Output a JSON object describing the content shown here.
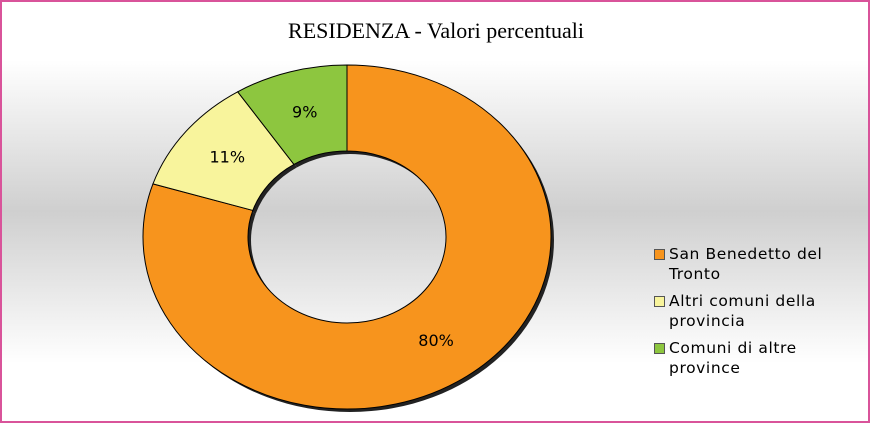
{
  "chart_data": {
    "type": "donut",
    "title": "RESIDENZA -  Valori percentuali",
    "series": [
      {
        "name": "San Benedetto del Tronto",
        "color": "#f7941d"
      },
      {
        "name": "Altri comuni della provincia",
        "color": "#f8f49c"
      },
      {
        "name": "Comuni di altre province",
        "color": "#8dc63f"
      }
    ],
    "categories": [
      "San Benedetto del Tronto",
      "Altri comuni della provincia",
      "Comuni di altre province"
    ],
    "values": [
      80,
      11,
      9
    ],
    "value_labels": [
      "80%",
      "11%",
      "9%"
    ],
    "legend": "right"
  }
}
